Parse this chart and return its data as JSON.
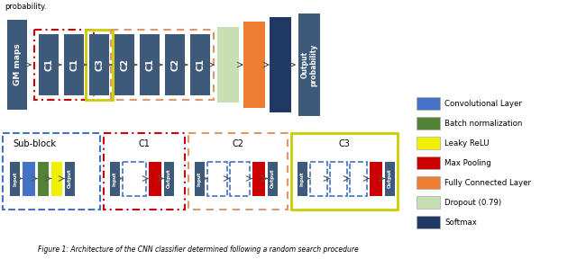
{
  "bg_color": "#ffffff",
  "dark_blue": "#3d5a7a",
  "conv_color": "#4472c4",
  "bn_color": "#538135",
  "relu_color": "#f0f000",
  "pool_color": "#cc0000",
  "fc_color": "#ed7d31",
  "dropout_color": "#c6e0b4",
  "softmax_color": "#1f3864",
  "red_dash": "#cc0000",
  "yellow_solid": "#cccc00",
  "orange_dash": "#e8a070",
  "blue_dash": "#4472c4",
  "legend_items": [
    {
      "label": "Convolutional Layer",
      "color": "#4472c4"
    },
    {
      "label": "Batch normalization",
      "color": "#538135"
    },
    {
      "label": "Leaky ReLU",
      "color": "#f0f000"
    },
    {
      "label": "Max Pooling",
      "color": "#cc0000"
    },
    {
      "label": "Fully Connected Layer",
      "color": "#ed7d31"
    },
    {
      "label": "Dropout (0.79)",
      "color": "#c6e0b4"
    },
    {
      "label": "Softmax",
      "color": "#1f3864"
    }
  ],
  "top_text": "probability.",
  "caption": "Figure 1: Architecture of the CNN classifier determined following a random search procedure"
}
